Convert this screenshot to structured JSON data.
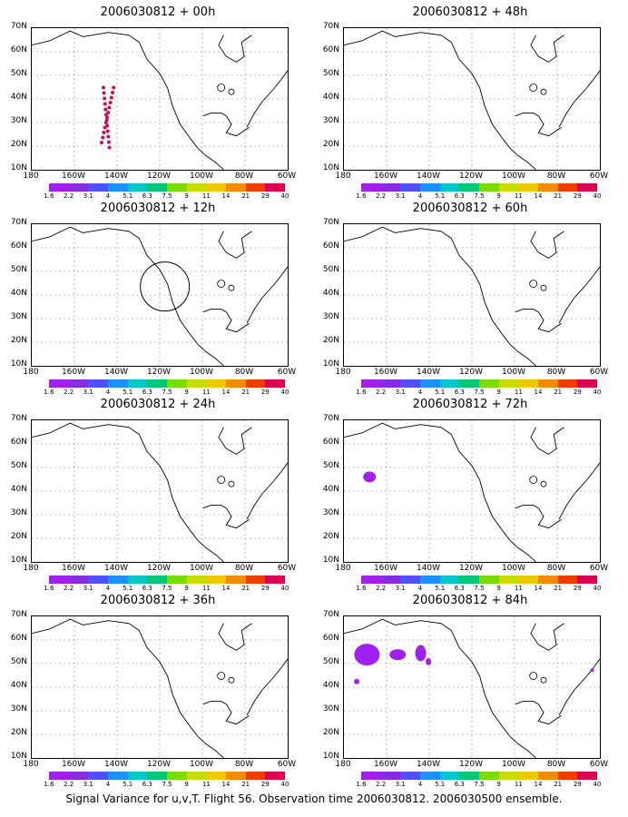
{
  "footer": "Signal Variance for u,v,T. Flight 56. Observation time 2006030812. 2006030500 ensemble.",
  "panels": [
    {
      "title": "2006030812 + 00h",
      "features": "track"
    },
    {
      "title": "2006030812 + 48h",
      "features": "none"
    },
    {
      "title": "2006030812 + 12h",
      "features": "circle"
    },
    {
      "title": "2006030812 + 60h",
      "features": "none"
    },
    {
      "title": "2006030812 + 24h",
      "features": "none"
    },
    {
      "title": "2006030812 + 72h",
      "features": "blob72"
    },
    {
      "title": "2006030812 + 36h",
      "features": "none"
    },
    {
      "title": "2006030812 + 84h",
      "features": "blob84"
    }
  ],
  "axes": {
    "y_labels": [
      "70N",
      "60N",
      "50N",
      "40N",
      "30N",
      "20N",
      "10N"
    ],
    "x_labels": [
      "180",
      "160W",
      "140W",
      "120W",
      "100W",
      "80W",
      "60W"
    ]
  },
  "colorbar": {
    "colors": [
      "#a020f0",
      "#8a2be2",
      "#5050ff",
      "#1e90ff",
      "#00c8c8",
      "#00c878",
      "#78dc00",
      "#c8dc00",
      "#f0c800",
      "#f08c00",
      "#f03c00",
      "#dc0050"
    ],
    "labels": [
      "1.6",
      "2.2",
      "3.1",
      "4",
      "5.1",
      "6.3",
      "7.5",
      "9",
      "11",
      "14",
      "21",
      "29",
      "40"
    ]
  },
  "colors": {
    "track": "#c8105a",
    "blob": "#a020f0"
  }
}
